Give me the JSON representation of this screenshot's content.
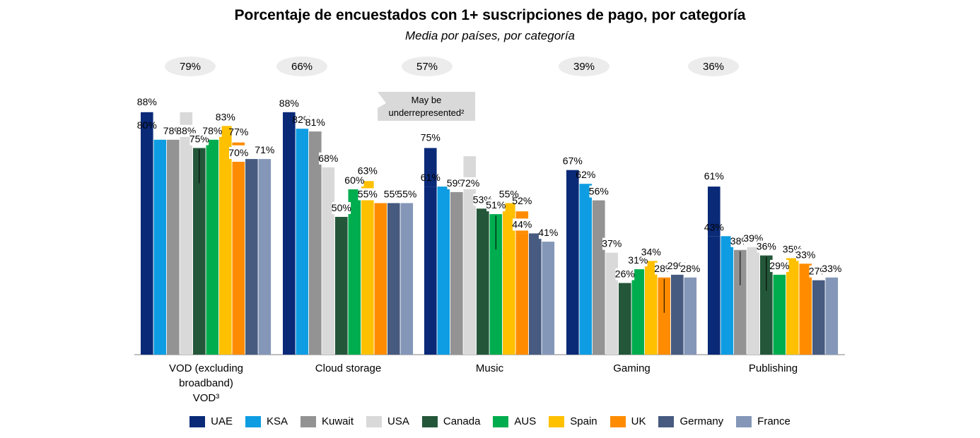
{
  "colors": {
    "UAE": "#0a2a78",
    "KSA": "#0e9de2",
    "Kuwait": "#939393",
    "USA": "#d9d9d9",
    "Canada": "#24573a",
    "AUS": "#00ad4e",
    "Spain": "#ffc000",
    "UK": "#ff8c00",
    "Germany": "#475a80",
    "France": "#8497b8",
    "bubble": "#ececec",
    "callout": "#d9d9d9"
  },
  "chart_data": {
    "type": "bar",
    "title": "Porcentaje de encuestados con 1+ suscripciones de pago, por categoría",
    "subtitle": "Media por países, por categoría",
    "ylim": [
      0,
      100
    ],
    "categories": [
      "VOD (excluding broadband) VOD³",
      "Cloud storage",
      "Music",
      "Gaming",
      "Publishing"
    ],
    "category_labels": [
      [
        "VOD (excluding",
        "broadband)",
        "VOD³"
      ],
      [
        "Cloud storage"
      ],
      [
        "Music"
      ],
      [
        "Gaming"
      ],
      [
        "Publishing"
      ]
    ],
    "averages": [
      "79%",
      "66%",
      "57%",
      "39%",
      "36%"
    ],
    "series": [
      {
        "name": "UAE",
        "values": [
          80,
          88,
          61,
          67,
          43
        ],
        "secondary": [
          88,
          null,
          75,
          null,
          61
        ]
      },
      {
        "name": "KSA",
        "values": [
          78,
          82,
          61,
          62,
          43
        ]
      },
      {
        "name": "Kuwait",
        "values": [
          78,
          81,
          59,
          56,
          38
        ]
      },
      {
        "name": "USA",
        "values": [
          78,
          68,
          59,
          37,
          39
        ],
        "secondary": [
          88,
          null,
          72,
          null,
          null
        ]
      },
      {
        "name": "Canada",
        "values": [
          75,
          50,
          53,
          26,
          36
        ]
      },
      {
        "name": "AUS",
        "values": [
          78,
          60,
          51,
          31,
          29
        ]
      },
      {
        "name": "Spain",
        "values": [
          83,
          55,
          55,
          34,
          35
        ],
        "secondary": [
          null,
          63,
          null,
          null,
          null
        ]
      },
      {
        "name": "UK",
        "values": [
          70,
          55,
          44,
          28,
          33
        ],
        "secondary": [
          77,
          null,
          52,
          null,
          null
        ]
      },
      {
        "name": "Germany",
        "values": [
          71,
          55,
          44,
          29,
          27
        ]
      },
      {
        "name": "France",
        "values": [
          71,
          55,
          41,
          28,
          28
        ],
        "secondary": [
          null,
          null,
          null,
          null,
          33
        ]
      }
    ],
    "bar_labels": [
      [
        "80%",
        "",
        "78%",
        "88%",
        "75%",
        "78%",
        "83%",
        "70%",
        "",
        "71%"
      ],
      [
        "88%",
        "82%",
        "81%",
        "68%",
        "50%",
        "60%",
        "55%",
        "",
        "55%",
        "55%"
      ],
      [
        "61%",
        "",
        "59%",
        "72%",
        "53%",
        "51%",
        "55%",
        "44%",
        "",
        "41%"
      ],
      [
        "67%",
        "62%",
        "56%",
        "37%",
        "26%",
        "31%",
        "34%",
        "28%",
        "29%",
        "28%"
      ],
      [
        "43%",
        "",
        "38%",
        "39%",
        "36%",
        "29%",
        "35%",
        "33%",
        "27%",
        "33%"
      ]
    ],
    "secondary_labels": [
      [
        "88%",
        "",
        "",
        "",
        "",
        "",
        "",
        "77%",
        "",
        ""
      ],
      [
        "",
        "",
        "",
        "",
        "",
        "",
        "63%",
        "",
        "",
        ""
      ],
      [
        "75%",
        "",
        "",
        "",
        "",
        "",
        "",
        "52%",
        "",
        ""
      ],
      [
        "",
        "",
        "",
        "",
        "",
        "",
        "",
        "",
        "",
        ""
      ],
      [
        "61%",
        "",
        "",
        "",
        "",
        "",
        "",
        "",
        "",
        ""
      ]
    ],
    "annotation": {
      "text": [
        "May be",
        "underrepresented²"
      ],
      "category_index": 2
    }
  },
  "legend": [
    "UAE",
    "KSA",
    "Kuwait",
    "USA",
    "Canada",
    "AUS",
    "Spain",
    "UK",
    "Germany",
    "France"
  ]
}
